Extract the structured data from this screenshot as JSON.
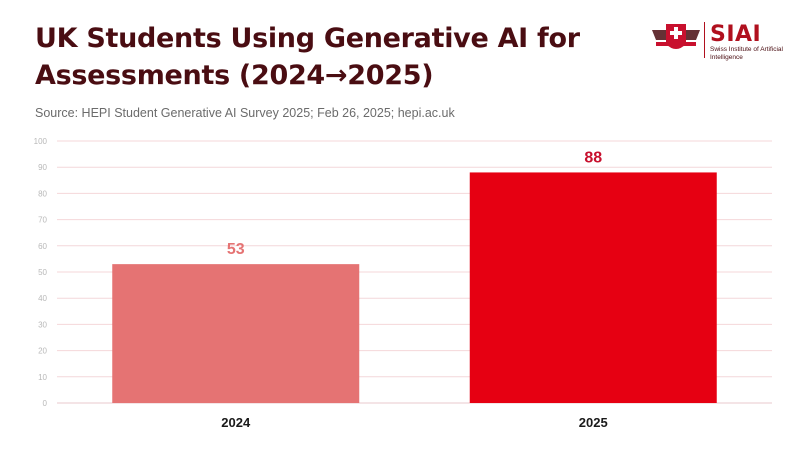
{
  "header": {
    "title": "UK Students Using Generative AI for Assessments (2024→2025)",
    "source": "Source: HEPI Student Generative AI Survey 2025; Feb 26, 2025; hepi.ac.uk"
  },
  "logo": {
    "name": "SIAI",
    "subtitle": "Swiss Institute of Artificial Intelligence"
  },
  "colors": {
    "title": "#4a0d12",
    "bar_2024": "#e57373",
    "bar_2025": "#e60012",
    "label_2024": "#e57373",
    "label_2025": "#c8102e",
    "grid": "#f4d7da",
    "tick": "#b8b8b8"
  },
  "chart_data": {
    "type": "bar",
    "categories": [
      "2024",
      "2025"
    ],
    "values": [
      53,
      88
    ],
    "title": "UK Students Using Generative AI for Assessments (2024→2025)",
    "xlabel": "",
    "ylabel": "",
    "ylim": [
      0,
      100
    ],
    "yticks": [
      0,
      10,
      20,
      30,
      40,
      50,
      60,
      70,
      80,
      90,
      100
    ],
    "grid": true,
    "data_labels": [
      "53",
      "88"
    ]
  }
}
